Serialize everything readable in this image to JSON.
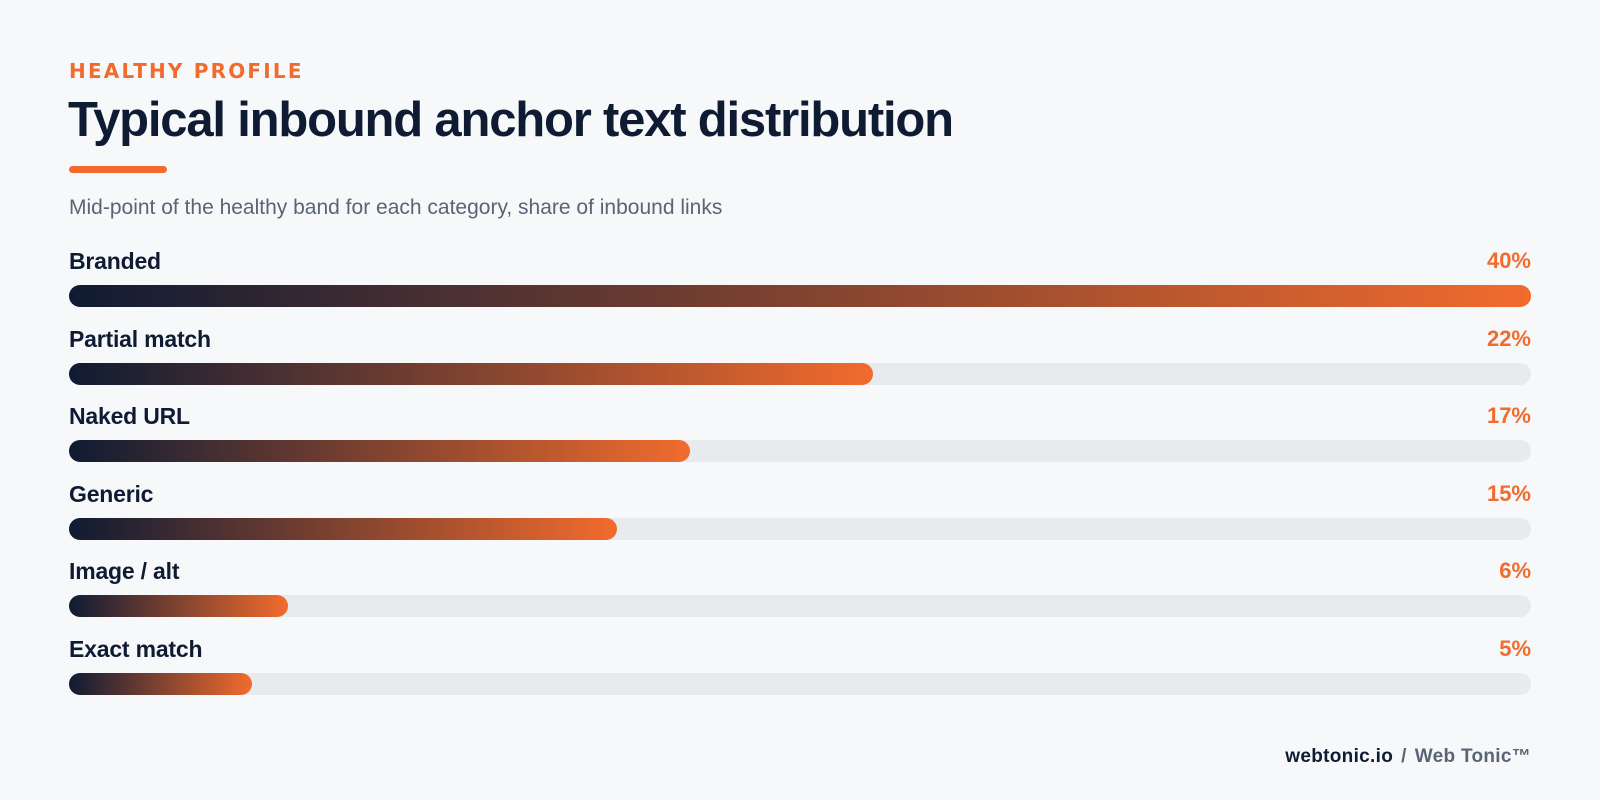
{
  "header": {
    "eyebrow": "HEALTHY PROFILE",
    "title": "Typical inbound anchor text distribution",
    "subtitle": "Mid-point of the healthy band for each category, share of inbound links"
  },
  "footer": {
    "site": "webtonic.io",
    "separator": "/",
    "brand": "Web Tonic™"
  },
  "colors": {
    "accent": "#f26b2d",
    "navy": "#0f1b33",
    "track": "#e8eaee",
    "muted": "#5b6475",
    "background": "#f7f8fa"
  },
  "chart_data": {
    "type": "bar",
    "orientation": "horizontal",
    "categories": [
      "Branded",
      "Partial match",
      "Naked URL",
      "Generic",
      "Image / alt",
      "Exact match"
    ],
    "values": [
      40,
      22,
      17,
      15,
      6,
      5
    ],
    "value_labels": [
      "40%",
      "22%",
      "17%",
      "15%",
      "6%",
      "5%"
    ],
    "xlim": [
      0,
      40
    ],
    "unit": "%",
    "title": "Typical inbound anchor text distribution",
    "subtitle": "Mid-point of the healthy band for each category, share of inbound links",
    "grid": false,
    "legend": "none"
  }
}
